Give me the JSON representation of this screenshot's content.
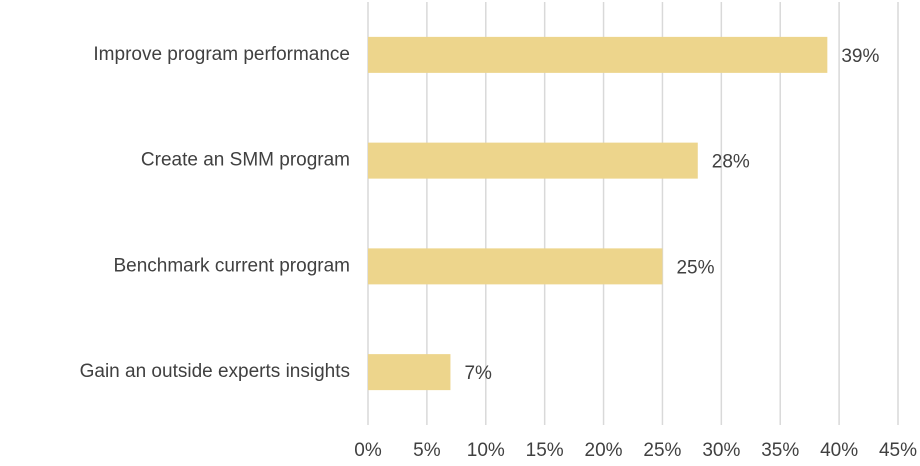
{
  "chart_data": {
    "type": "bar",
    "orientation": "horizontal",
    "categories": [
      "Improve program performance",
      "Create an SMM program",
      "Benchmark current program",
      "Gain an outside experts insights"
    ],
    "values": [
      39,
      28,
      25,
      7
    ],
    "value_labels": [
      "39%",
      "28%",
      "25%",
      "7%"
    ],
    "color": "#edd58c",
    "xlim": [
      0,
      45
    ],
    "xticks": [
      {
        "value": 0,
        "label": "0%"
      },
      {
        "value": 5,
        "label": "5%"
      },
      {
        "value": 10,
        "label": "10%"
      },
      {
        "value": 15,
        "label": "15%"
      },
      {
        "value": 20,
        "label": "20%"
      },
      {
        "value": 25,
        "label": "25%"
      },
      {
        "value": 30,
        "label": "30%"
      },
      {
        "value": 35,
        "label": "35%"
      },
      {
        "value": 40,
        "label": "40%"
      },
      {
        "value": 45,
        "label": "45%"
      }
    ],
    "grid": true
  }
}
